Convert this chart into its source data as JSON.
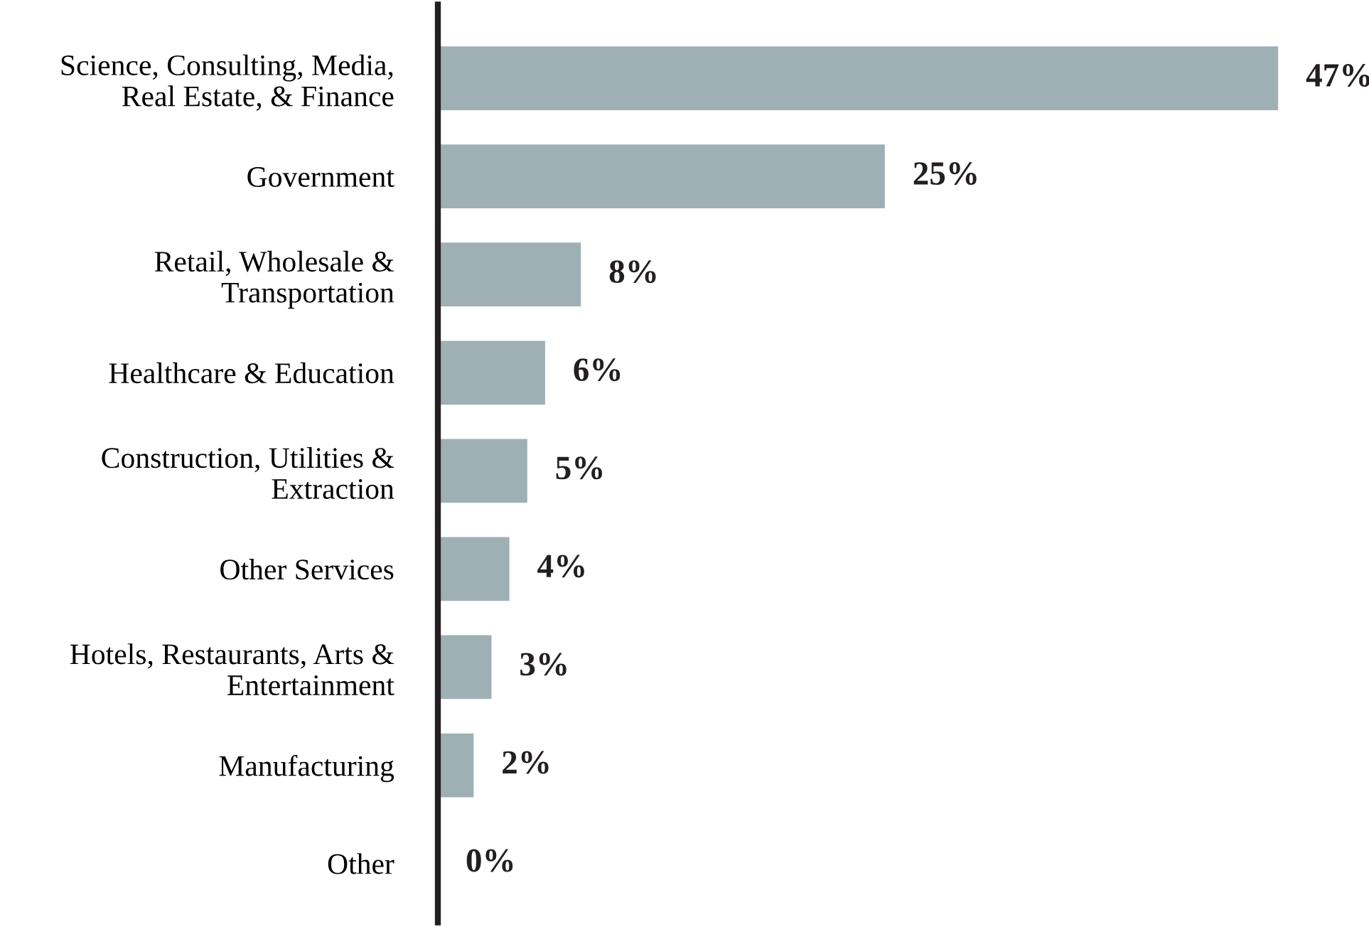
{
  "chart_data": {
    "type": "bar",
    "orientation": "horizontal",
    "categories": [
      "Science, Consulting, Media,\nReal Estate, & Finance",
      "Government",
      "Retail, Wholesale &\nTransportation",
      "Healthcare & Education",
      "Construction, Utilities &\nExtraction",
      "Other Services",
      "Hotels, Restaurants, Arts &\nEntertainment",
      "Manufacturing",
      "Other"
    ],
    "values": [
      47,
      25,
      8,
      6,
      5,
      4,
      3,
      2,
      0
    ],
    "value_labels": [
      "47%",
      "25%",
      "8%",
      "6%",
      "5%",
      "4%",
      "3%",
      "2%",
      "0%"
    ],
    "color": "#9eb0b4",
    "grid": false,
    "legend": false
  }
}
